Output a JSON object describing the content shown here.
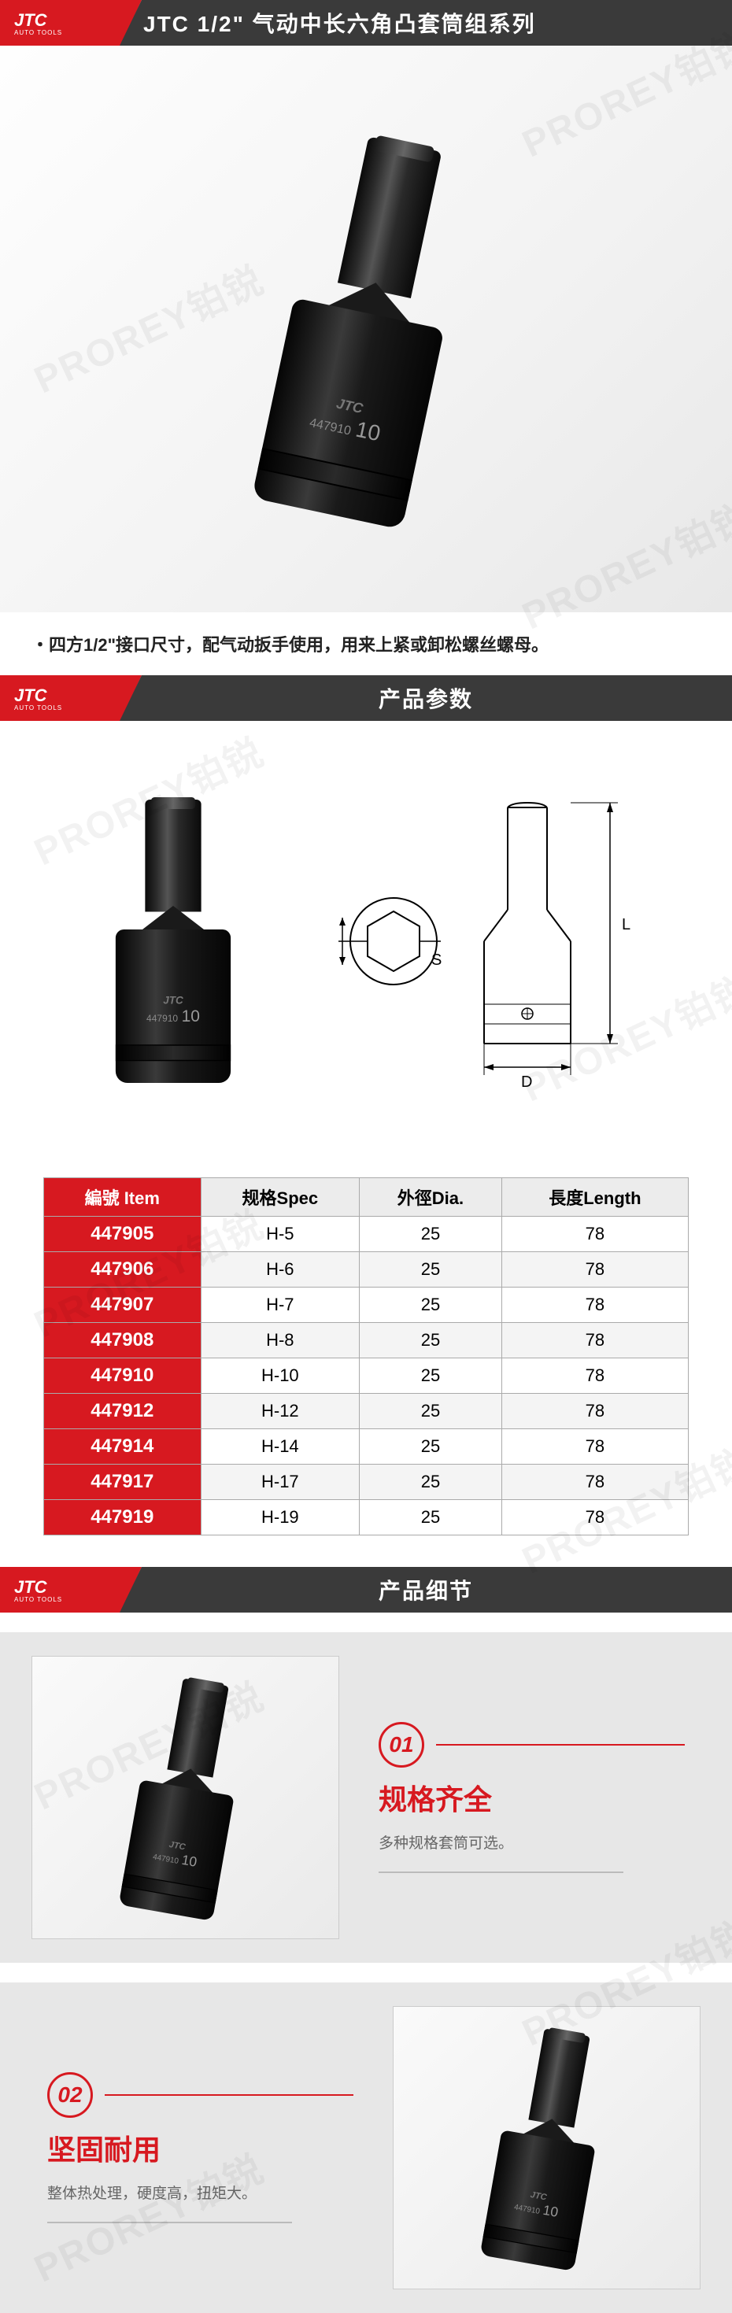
{
  "brand": {
    "logo_text": "JTC",
    "logo_sub": "AUTO TOOLS"
  },
  "colors": {
    "primary": "#d71920",
    "header_bg": "#3a3a3a",
    "text": "#222",
    "muted": "#666",
    "border": "#aaa",
    "row_alt": "#f4f4f4",
    "detail_bg": "#e7e7e7"
  },
  "watermark": "PROREY铂锐",
  "header": {
    "title": "JTC  1/2\" 气动中长六角凸套筒组系列"
  },
  "hero": {
    "product_code": "447910",
    "product_size": "10",
    "product_brand": "JTC"
  },
  "description": "・四方1/2\"接口尺寸，配气动扳手使用，用来上紧或卸松螺丝螺母。",
  "section_params_title": "产品参数",
  "tech_labels": {
    "S": "S",
    "L": "L",
    "D": "D"
  },
  "table": {
    "columns": [
      "編號 Item",
      "规格Spec",
      "外徑Dia.",
      "長度Length"
    ],
    "rows": [
      [
        "447905",
        "H-5",
        "25",
        "78"
      ],
      [
        "447906",
        "H-6",
        "25",
        "78"
      ],
      [
        "447907",
        "H-7",
        "25",
        "78"
      ],
      [
        "447908",
        "H-8",
        "25",
        "78"
      ],
      [
        "447910",
        "H-10",
        "25",
        "78"
      ],
      [
        "447912",
        "H-12",
        "25",
        "78"
      ],
      [
        "447914",
        "H-14",
        "25",
        "78"
      ],
      [
        "447917",
        "H-17",
        "25",
        "78"
      ],
      [
        "447919",
        "H-19",
        "25",
        "78"
      ]
    ]
  },
  "section_detail_title": "产品细节",
  "details": [
    {
      "num": "01",
      "title": "规格齐全",
      "desc": "多种规格套筒可选。"
    },
    {
      "num": "02",
      "title": "坚固耐用",
      "desc": "整体热处理，硬度高，扭矩大。"
    }
  ]
}
